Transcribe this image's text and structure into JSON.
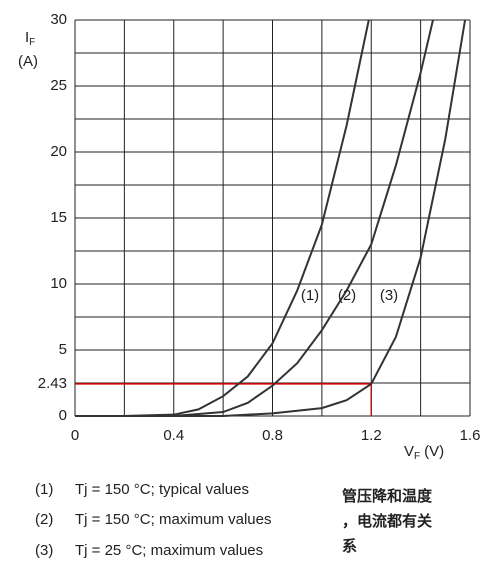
{
  "chart_data": {
    "type": "line",
    "y_label": {
      "symbol": "I",
      "subscript": "F",
      "unit": "(A)"
    },
    "x_label": {
      "symbol": "V",
      "subscript": "F",
      "unit": "(V)"
    },
    "xlim": [
      0,
      1.6
    ],
    "xticks": [
      0,
      0.4,
      0.8,
      1.2,
      1.6
    ],
    "xgrid": [
      0,
      0.2,
      0.4,
      0.6,
      0.8,
      1.0,
      1.2,
      1.4,
      1.6
    ],
    "ylim": [
      0,
      30
    ],
    "yticks": [
      0,
      5,
      10,
      15,
      20,
      25,
      30
    ],
    "ygrid": [
      0,
      2.5,
      5,
      7.5,
      10,
      12.5,
      15,
      17.5,
      20,
      22.5,
      25,
      27.5,
      30
    ],
    "grid": true,
    "series": [
      {
        "name": "(1)",
        "description": "Tj = 150 °C; typical values",
        "color": "#333333",
        "x": [
          0,
          0.2,
          0.4,
          0.5,
          0.6,
          0.7,
          0.8,
          0.9,
          1.0,
          1.1,
          1.19
        ],
        "values": [
          0,
          0,
          0.1,
          0.5,
          1.5,
          3,
          5.5,
          9.5,
          14.5,
          22,
          30
        ]
      },
      {
        "name": "(2)",
        "description": "Tj = 150 °C; maximum values",
        "color": "#333333",
        "x": [
          0,
          0.4,
          0.6,
          0.7,
          0.8,
          0.9,
          1.0,
          1.1,
          1.2,
          1.3,
          1.4,
          1.45
        ],
        "values": [
          0,
          0,
          0.3,
          1,
          2.3,
          4,
          6.5,
          9.5,
          13,
          19,
          26,
          30
        ]
      },
      {
        "name": "(3)",
        "description": "Tj = 25 °C; maximum values",
        "color": "#333333",
        "x": [
          0,
          0.6,
          0.8,
          1.0,
          1.1,
          1.2,
          1.3,
          1.4,
          1.5,
          1.58
        ],
        "values": [
          0,
          0,
          0.2,
          0.6,
          1.2,
          2.43,
          6,
          12,
          21,
          30
        ]
      }
    ],
    "annotation": {
      "x": 1.2,
      "y": 2.43,
      "color": "#e00000",
      "note": [
        "管压降和温度",
        "，电流都有关",
        "系"
      ]
    }
  }
}
